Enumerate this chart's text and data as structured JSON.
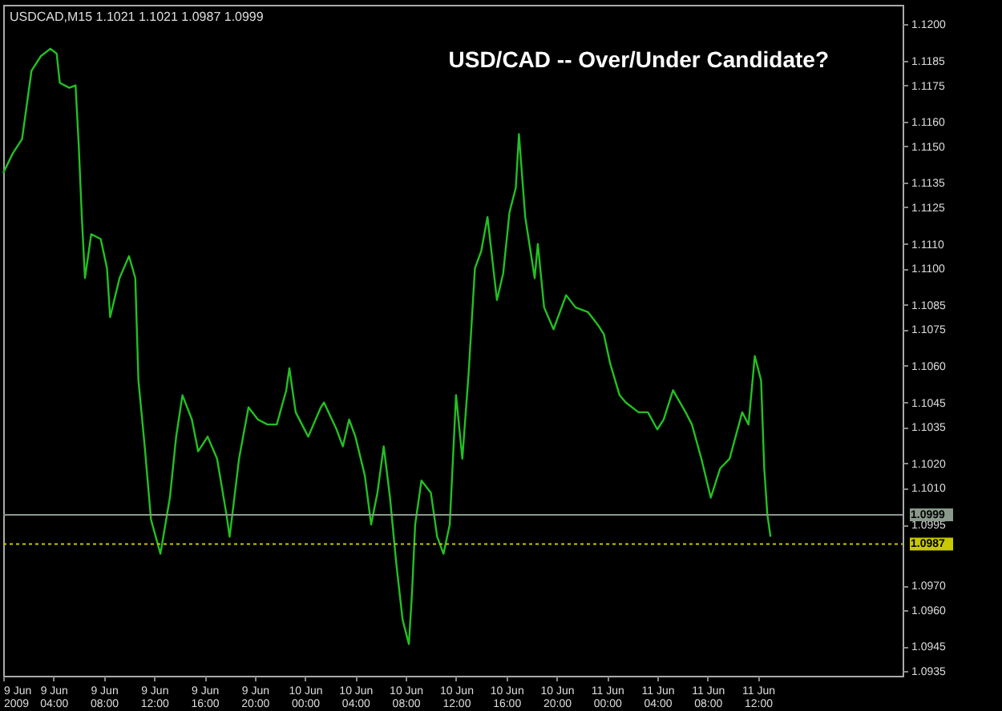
{
  "chart_data": {
    "type": "line",
    "title": "USD/CAD -- Over/Under Candidate?",
    "annotations": [
      "USDCAD,M15  1.1021 1.1021 1.0987 1.0999"
    ],
    "x": [
      "2009-06-09T00:00",
      "2009-06-09T00:45",
      "2009-06-09T01:30",
      "2009-06-09T02:15",
      "2009-06-09T03:00",
      "2009-06-09T03:45",
      "2009-06-09T04:15",
      "2009-06-09T04:30",
      "2009-06-09T05:15",
      "2009-06-09T05:45",
      "2009-06-09T06:00",
      "2009-06-09T06:15",
      "2009-06-09T06:30",
      "2009-06-09T07:00",
      "2009-06-09T07:45",
      "2009-06-09T08:15",
      "2009-06-09T08:30",
      "2009-06-09T09:15",
      "2009-06-09T10:00",
      "2009-06-09T10:30",
      "2009-06-09T10:45",
      "2009-06-09T11:15",
      "2009-06-09T11:45",
      "2009-06-09T12:30",
      "2009-06-09T13:15",
      "2009-06-09T13:45",
      "2009-06-09T14:15",
      "2009-06-09T15:00",
      "2009-06-09T15:30",
      "2009-06-09T16:15",
      "2009-06-09T17:00",
      "2009-06-09T17:45",
      "2009-06-09T18:00",
      "2009-06-09T18:45",
      "2009-06-09T19:30",
      "2009-06-09T20:15",
      "2009-06-09T21:00",
      "2009-06-09T21:45",
      "2009-06-09T22:30",
      "2009-06-09T22:45",
      "2009-06-09T23:15",
      "2009-06-10T00:15",
      "2009-06-10T01:15",
      "2009-06-10T01:30",
      "2009-06-10T02:30",
      "2009-06-10T03:00",
      "2009-06-10T03:30",
      "2009-06-10T04:00",
      "2009-06-10T04:45",
      "2009-06-10T05:15",
      "2009-06-10T05:45",
      "2009-06-10T06:15",
      "2009-06-10T06:45",
      "2009-06-10T07:15",
      "2009-06-10T07:45",
      "2009-06-10T08:15",
      "2009-06-10T08:30",
      "2009-06-10T08:45",
      "2009-06-10T09:15",
      "2009-06-10T10:00",
      "2009-06-10T10:30",
      "2009-06-10T11:00",
      "2009-06-10T11:30",
      "2009-06-10T12:00",
      "2009-06-10T12:30",
      "2009-06-10T13:00",
      "2009-06-10T13:30",
      "2009-06-10T14:00",
      "2009-06-10T14:30",
      "2009-06-10T15:15",
      "2009-06-10T15:45",
      "2009-06-10T16:15",
      "2009-06-10T16:45",
      "2009-06-10T17:00",
      "2009-06-10T17:30",
      "2009-06-10T18:15",
      "2009-06-10T18:30",
      "2009-06-10T19:00",
      "2009-06-10T19:45",
      "2009-06-10T20:45",
      "2009-06-10T21:30",
      "2009-06-10T22:30",
      "2009-06-10T23:15",
      "2009-06-10T23:45",
      "2009-06-11T00:15",
      "2009-06-11T01:00",
      "2009-06-11T01:30",
      "2009-06-11T02:30",
      "2009-06-11T03:15",
      "2009-06-11T04:00",
      "2009-06-11T04:30",
      "2009-06-11T05:15",
      "2009-06-11T06:15",
      "2009-06-11T06:45",
      "2009-06-11T07:30",
      "2009-06-11T08:15",
      "2009-06-11T09:00",
      "2009-06-11T09:45",
      "2009-06-11T10:45",
      "2009-06-11T11:15",
      "2009-06-11T11:45",
      "2009-06-11T12:15",
      "2009-06-11T12:30",
      "2009-06-11T12:45",
      "2009-06-11T13:00"
    ],
    "series": [
      {
        "color": "#22c022",
        "values": [
          1.1139,
          1.1147,
          1.1153,
          1.1181,
          1.1187,
          1.119,
          1.1188,
          1.1176,
          1.1174,
          1.1175,
          1.1151,
          1.1121,
          1.1096,
          1.1114,
          1.1112,
          1.11,
          1.108,
          1.1096,
          1.1105,
          1.1096,
          1.1054,
          1.1027,
          1.0997,
          1.0983,
          1.1006,
          1.1031,
          1.1048,
          1.1038,
          1.1025,
          1.1031,
          1.1022,
          1.0999,
          1.099,
          1.1022,
          1.1043,
          1.1038,
          1.1036,
          1.1036,
          1.105,
          1.1059,
          1.1041,
          1.1031,
          1.1043,
          1.1045,
          1.1034,
          1.1027,
          1.1038,
          1.1031,
          1.1015,
          1.0995,
          1.1008,
          1.1027,
          1.1006,
          1.0979,
          1.0956,
          1.0946,
          1.0967,
          1.0995,
          1.1013,
          1.1008,
          1.099,
          1.0983,
          1.0995,
          1.1048,
          1.1022,
          1.1057,
          1.11,
          1.1107,
          1.1121,
          1.1087,
          1.1098,
          1.1123,
          1.1133,
          1.1155,
          1.1121,
          1.1096,
          1.111,
          1.1084,
          1.1075,
          1.1089,
          1.1084,
          1.1082,
          1.1077,
          1.1073,
          1.1061,
          1.1048,
          1.1045,
          1.1041,
          1.1041,
          1.1034,
          1.1038,
          1.105,
          1.1041,
          1.1036,
          1.1022,
          1.1006,
          1.1018,
          1.1022,
          1.1041,
          1.1036,
          1.1064,
          1.1054,
          1.1018,
          1.0999,
          1.099
        ]
      }
    ],
    "xlim": [
      "2009-06-09T00:00",
      "2009-06-11T23:30"
    ],
    "xticks": [
      {
        "value": "2009-06-09T00:00",
        "label": "9 Jun 2009"
      },
      {
        "value": "2009-06-09T04:00",
        "label": "9 Jun 04:00"
      },
      {
        "value": "2009-06-09T08:00",
        "label": "9 Jun 08:00"
      },
      {
        "value": "2009-06-09T12:00",
        "label": "9 Jun 12:00"
      },
      {
        "value": "2009-06-09T16:00",
        "label": "9 Jun 16:00"
      },
      {
        "value": "2009-06-09T20:00",
        "label": "9 Jun 20:00"
      },
      {
        "value": "2009-06-10T00:00",
        "label": "10 Jun 00:00"
      },
      {
        "value": "2009-06-10T04:00",
        "label": "10 Jun 04:00"
      },
      {
        "value": "2009-06-10T08:00",
        "label": "10 Jun 08:00"
      },
      {
        "value": "2009-06-10T12:00",
        "label": "10 Jun 12:00"
      },
      {
        "value": "2009-06-10T16:00",
        "label": "10 Jun 16:00"
      },
      {
        "value": "2009-06-10T20:00",
        "label": "10 Jun 20:00"
      },
      {
        "value": "2009-06-11T00:00",
        "label": "11 Jun 00:00"
      },
      {
        "value": "2009-06-11T04:00",
        "label": "11 Jun 04:00"
      },
      {
        "value": "2009-06-11T08:00",
        "label": "11 Jun 08:00"
      },
      {
        "value": "2009-06-11T12:00",
        "label": "11 Jun 12:00"
      }
    ],
    "ylim": [
      1.0933,
      1.1208
    ],
    "yticks": [
      {
        "value": 1.12,
        "label": "1.1200"
      },
      1.1185,
      1.1175,
      {
        "value": 1.116,
        "label": "1.1160"
      },
      {
        "value": 1.115,
        "label": "1.1150"
      },
      1.1135,
      1.1125,
      {
        "value": 1.111,
        "label": "1.1110"
      },
      {
        "value": 1.11,
        "label": "1.1100"
      },
      1.1085,
      1.1075,
      {
        "value": 1.106,
        "label": "1.1060"
      },
      1.1045,
      1.1035,
      {
        "value": 1.102,
        "label": "1.1020"
      },
      {
        "value": 1.101,
        "label": "1.1010"
      },
      1.0995,
      {
        "value": 1.097,
        "label": "1.0970"
      },
      {
        "value": 1.096,
        "label": "1.0960"
      },
      1.0945,
      1.0935
    ],
    "ref_lines": [
      {
        "axis": "y",
        "value": 1.0999,
        "label": "1.0999",
        "color": "#8a9a8a",
        "line_style": "solid"
      },
      {
        "axis": "y",
        "value": 1.0987,
        "label": "1.0987",
        "color": "#c8c800",
        "line_style": "dotted"
      }
    ],
    "line_style": "solid",
    "grid": false
  }
}
